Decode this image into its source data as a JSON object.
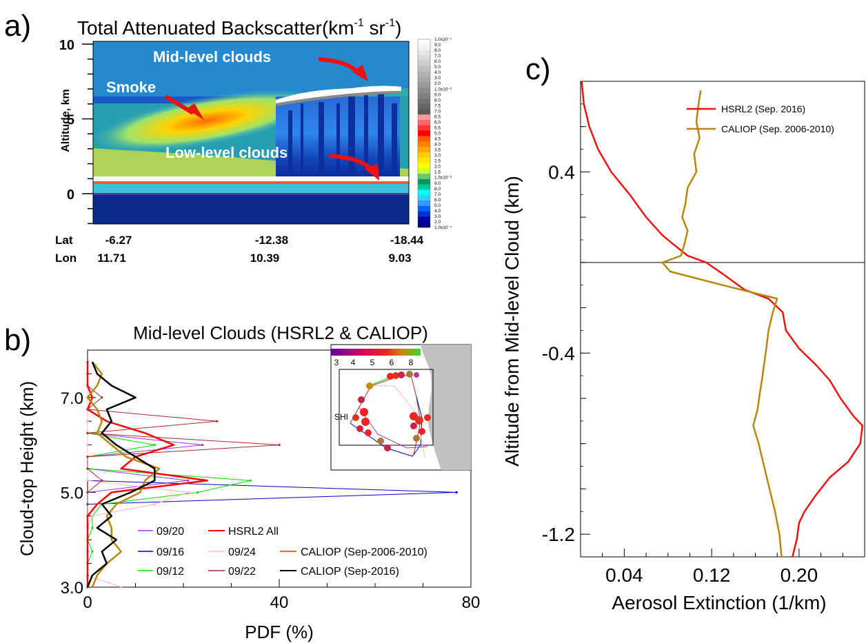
{
  "panel_labels": {
    "a": "a)",
    "b": "b)",
    "c": "c)"
  },
  "panel_a": {
    "title_main": "Total Attenuated Backscatter(km",
    "title_sup1": "-1",
    "title_mid": " sr",
    "title_sup2": "-1",
    "title_end": ")",
    "ylabel": "Altitude, km",
    "yticks": [
      "10",
      "5",
      "0"
    ],
    "row_lat": "Lat",
    "row_lon": "Lon",
    "lat_ticks": [
      "-6.27",
      "-12.38",
      "-18.44"
    ],
    "lon_ticks": [
      "11.71",
      "10.39",
      "9.03"
    ],
    "annotations": {
      "mid": "Mid-level clouds",
      "smoke": "Smoke",
      "low": "Low-level clouds"
    },
    "colorbar_labels": [
      "1.0x10⁻¹",
      "9.0",
      "8.0",
      "7.0",
      "6.0",
      "5.0",
      "4.0",
      "3.0",
      "2.0",
      "1.0x10⁻²",
      "9.0",
      "8.0",
      "7.5",
      "7.0",
      "6.5",
      "6.0",
      "5.5",
      "5.0",
      "4.5",
      "4.0",
      "3.5",
      "3.0",
      "2.5",
      "2.0",
      "1.5",
      "1.0x10⁻³",
      "9.0",
      "8.0",
      "7.0",
      "6.0",
      "5.0",
      "4.0",
      "3.0",
      "2.0",
      "1.0x10⁻⁴"
    ],
    "colorbar_colors": [
      "#ffffff",
      "#f2f2f2",
      "#e6e6e6",
      "#d9d9d9",
      "#cccccc",
      "#bfbfbf",
      "#b3b3b3",
      "#a6a6a6",
      "#999999",
      "#8c8c8c",
      "#808080",
      "#737373",
      "#666666",
      "#595959",
      "#ff9999",
      "#ff6666",
      "#ff3333",
      "#ff0000",
      "#ff5a00",
      "#ff8000",
      "#ffa500",
      "#ffcc00",
      "#ffe600",
      "#ffff00",
      "#ccff33",
      "#66cc66",
      "#009966",
      "#00cc99",
      "#00ffff",
      "#33ccff",
      "#3399ff",
      "#0066ff",
      "#0033cc",
      "#0000aa",
      "#000080"
    ]
  },
  "chart_data": [
    {
      "type": "line",
      "panel": "b",
      "title": "Mid-level Clouds (HSRL2 & CALIOP)",
      "xlabel": "PDF (%)",
      "ylabel": "Cloud-top Height (km)",
      "xlim": [
        0,
        80
      ],
      "ylim": [
        3.0,
        8.0
      ],
      "xticks": [
        "0",
        "40",
        "80"
      ],
      "yticks": [
        "3.0",
        "5.0",
        "7.0"
      ],
      "series": [
        {
          "name": "09/20",
          "color": "#9933ee",
          "width": 1,
          "points": [
            [
              0,
              3.0
            ],
            [
              0,
              3.25
            ],
            [
              0,
              3.5
            ],
            [
              0,
              3.75
            ],
            [
              0,
              4.0
            ],
            [
              0,
              4.25
            ],
            [
              0,
              4.5
            ],
            [
              0,
              4.75
            ],
            [
              0,
              5.0
            ],
            [
              21,
              5.25
            ],
            [
              0,
              5.5
            ],
            [
              0,
              5.75
            ],
            [
              24,
              6.0
            ],
            [
              0,
              6.25
            ],
            [
              0,
              6.5
            ],
            [
              0,
              6.75
            ],
            [
              0,
              7.0
            ],
            [
              0,
              7.25
            ],
            [
              0,
              7.5
            ],
            [
              0,
              7.75
            ]
          ]
        },
        {
          "name": "09/16",
          "color": "#0000cc",
          "width": 1,
          "points": [
            [
              0,
              3.0
            ],
            [
              0,
              3.25
            ],
            [
              0,
              3.5
            ],
            [
              0,
              3.75
            ],
            [
              0,
              4.0
            ],
            [
              0,
              4.25
            ],
            [
              0,
              4.5
            ],
            [
              0,
              4.75
            ],
            [
              77,
              5.0
            ],
            [
              0,
              5.25
            ],
            [
              0,
              5.5
            ],
            [
              0,
              5.75
            ],
            [
              0,
              6.0
            ],
            [
              0,
              6.25
            ],
            [
              0,
              6.5
            ],
            [
              0,
              6.75
            ],
            [
              0,
              7.0
            ],
            [
              0,
              7.25
            ],
            [
              0,
              7.5
            ],
            [
              0,
              7.75
            ]
          ]
        },
        {
          "name": "09/12",
          "color": "#00dd00",
          "width": 1,
          "points": [
            [
              0,
              3.0
            ],
            [
              0,
              3.25
            ],
            [
              0,
              3.5
            ],
            [
              1,
              3.75
            ],
            [
              0,
              4.0
            ],
            [
              1,
              4.25
            ],
            [
              1,
              4.5
            ],
            [
              3,
              4.75
            ],
            [
              23,
              5.0
            ],
            [
              34,
              5.25
            ],
            [
              0,
              5.5
            ],
            [
              0,
              5.75
            ],
            [
              14,
              6.0
            ],
            [
              0,
              6.25
            ],
            [
              0,
              6.5
            ],
            [
              0,
              6.75
            ],
            [
              0,
              7.0
            ],
            [
              0,
              7.25
            ],
            [
              0,
              7.5
            ],
            [
              0,
              7.75
            ]
          ]
        },
        {
          "name": "09/24",
          "color": "#ffb6c1",
          "width": 1,
          "points": [
            [
              7,
              3.0
            ],
            [
              0,
              3.25
            ],
            [
              0,
              3.5
            ],
            [
              0,
              3.75
            ],
            [
              0,
              4.0
            ],
            [
              0,
              4.25
            ],
            [
              1,
              4.5
            ],
            [
              14,
              4.75
            ],
            [
              21,
              5.0
            ],
            [
              0,
              5.25
            ],
            [
              0,
              5.5
            ],
            [
              0,
              5.75
            ],
            [
              0,
              6.0
            ],
            [
              0,
              6.25
            ],
            [
              0,
              6.5
            ],
            [
              0,
              6.75
            ],
            [
              0,
              7.0
            ],
            [
              0,
              7.25
            ],
            [
              0,
              7.5
            ],
            [
              0,
              7.75
            ]
          ]
        },
        {
          "name": "09/22",
          "color": "#a52a2a",
          "width": 1,
          "points": [
            [
              0,
              3.0
            ],
            [
              0,
              3.25
            ],
            [
              0,
              3.5
            ],
            [
              0,
              3.75
            ],
            [
              0,
              4.0
            ],
            [
              0,
              4.25
            ],
            [
              0,
              4.5
            ],
            [
              0,
              4.75
            ],
            [
              0,
              5.0
            ],
            [
              3,
              5.25
            ],
            [
              0,
              5.5
            ],
            [
              0,
              5.75
            ],
            [
              40,
              6.0
            ],
            [
              0,
              6.25
            ],
            [
              27,
              6.5
            ],
            [
              0,
              6.75
            ],
            [
              3,
              7.0
            ],
            [
              0,
              7.25
            ],
            [
              0,
              7.5
            ],
            [
              0,
              7.75
            ]
          ]
        },
        {
          "name": "HSRL2 All",
          "color": "#ff0000",
          "width": 2.5,
          "points": [
            [
              0,
              3.0
            ],
            [
              0,
              3.25
            ],
            [
              0,
              3.5
            ],
            [
              0,
              3.75
            ],
            [
              0,
              4.0
            ],
            [
              0,
              4.25
            ],
            [
              0,
              4.5
            ],
            [
              2,
              4.75
            ],
            [
              5,
              5.0
            ],
            [
              25,
              5.25
            ],
            [
              7,
              5.5
            ],
            [
              10,
              5.75
            ],
            [
              18,
              6.0
            ],
            [
              12,
              6.25
            ],
            [
              4,
              6.5
            ],
            [
              0,
              6.75
            ],
            [
              1,
              7.0
            ],
            [
              0,
              7.25
            ],
            [
              0,
              7.5
            ],
            [
              0,
              7.75
            ]
          ]
        },
        {
          "name": "CALIOP (Sep-2006-2010)",
          "color": "#b8860b",
          "width": 2.5,
          "points": [
            [
              1,
              3.0
            ],
            [
              2,
              3.25
            ],
            [
              4,
              3.5
            ],
            [
              7,
              3.75
            ],
            [
              5,
              4.0
            ],
            [
              5,
              4.25
            ],
            [
              4,
              4.5
            ],
            [
              6,
              4.75
            ],
            [
              11,
              5.0
            ],
            [
              12,
              5.25
            ],
            [
              15,
              5.5
            ],
            [
              8,
              5.75
            ],
            [
              5,
              6.0
            ],
            [
              2,
              6.25
            ],
            [
              3,
              6.5
            ],
            [
              2,
              6.75
            ],
            [
              0,
              7.0
            ],
            [
              2,
              7.25
            ],
            [
              3,
              7.5
            ],
            [
              1,
              7.75
            ]
          ]
        },
        {
          "name": "CALIOP (Sep-2016)",
          "color": "#000000",
          "width": 2.5,
          "points": [
            [
              0,
              3.0
            ],
            [
              1,
              3.25
            ],
            [
              4,
              3.5
            ],
            [
              3,
              3.75
            ],
            [
              6,
              4.0
            ],
            [
              2,
              4.25
            ],
            [
              5,
              4.5
            ],
            [
              3,
              4.75
            ],
            [
              9,
              5.0
            ],
            [
              14,
              5.25
            ],
            [
              14,
              5.5
            ],
            [
              10,
              5.75
            ],
            [
              6,
              6.0
            ],
            [
              3,
              6.25
            ],
            [
              5,
              6.5
            ],
            [
              4,
              6.75
            ],
            [
              10,
              7.0
            ],
            [
              5,
              7.25
            ],
            [
              2,
              7.5
            ],
            [
              1,
              7.75
            ]
          ]
        }
      ],
      "inset": {
        "colorbar_ticks": [
          "3",
          "4",
          "5",
          "6",
          "8"
        ],
        "site_label": "SHI"
      }
    },
    {
      "type": "line",
      "panel": "c",
      "title": "",
      "xlabel": "Aerosol Extinction (1/km)",
      "ylabel": "Altitude from Mid-level Cloud (km)",
      "xlim": [
        0,
        0.26
      ],
      "ylim": [
        -1.3,
        0.8
      ],
      "xticks": [
        "0.04",
        "0.12",
        "0.20"
      ],
      "yticks": [
        "0.4",
        "-0.4",
        "-1.2"
      ],
      "reference_line_y": 0,
      "series": [
        {
          "name": "HSRL2 (Sep. 2016)",
          "color": "#ee1111",
          "points": [
            [
              0.001,
              0.8
            ],
            [
              0.003,
              0.7
            ],
            [
              0.008,
              0.6
            ],
            [
              0.016,
              0.5
            ],
            [
              0.028,
              0.4
            ],
            [
              0.045,
              0.3
            ],
            [
              0.06,
              0.2
            ],
            [
              0.075,
              0.12
            ],
            [
              0.085,
              0.08
            ],
            [
              0.098,
              0.03
            ],
            [
              0.115,
              0.0
            ],
            [
              0.13,
              -0.05
            ],
            [
              0.15,
              -0.12
            ],
            [
              0.172,
              -0.16
            ],
            [
              0.185,
              -0.22
            ],
            [
              0.188,
              -0.3
            ],
            [
              0.2,
              -0.38
            ],
            [
              0.215,
              -0.45
            ],
            [
              0.228,
              -0.52
            ],
            [
              0.238,
              -0.6
            ],
            [
              0.25,
              -0.68
            ],
            [
              0.258,
              -0.72
            ],
            [
              0.256,
              -0.8
            ],
            [
              0.245,
              -0.88
            ],
            [
              0.228,
              -0.95
            ],
            [
              0.215,
              -1.03
            ],
            [
              0.205,
              -1.1
            ],
            [
              0.2,
              -1.15
            ],
            [
              0.198,
              -1.22
            ],
            [
              0.194,
              -1.3
            ]
          ]
        },
        {
          "name": "CALIOP (Sep. 2006-2010)",
          "color": "#b8860b",
          "points": [
            [
              0.11,
              0.76
            ],
            [
              0.108,
              0.7
            ],
            [
              0.106,
              0.62
            ],
            [
              0.109,
              0.55
            ],
            [
              0.104,
              0.48
            ],
            [
              0.106,
              0.4
            ],
            [
              0.098,
              0.33
            ],
            [
              0.096,
              0.26
            ],
            [
              0.093,
              0.2
            ],
            [
              0.098,
              0.14
            ],
            [
              0.095,
              0.08
            ],
            [
              0.092,
              0.03
            ],
            [
              0.075,
              0.0
            ],
            [
              0.082,
              -0.04
            ],
            [
              0.13,
              -0.1
            ],
            [
              0.18,
              -0.16
            ],
            [
              0.176,
              -0.22
            ],
            [
              0.172,
              -0.3
            ],
            [
              0.17,
              -0.38
            ],
            [
              0.168,
              -0.45
            ],
            [
              0.166,
              -0.52
            ],
            [
              0.164,
              -0.58
            ],
            [
              0.162,
              -0.65
            ],
            [
              0.158,
              -0.72
            ],
            [
              0.163,
              -0.8
            ],
            [
              0.168,
              -0.9
            ],
            [
              0.173,
              -1.0
            ],
            [
              0.178,
              -1.1
            ],
            [
              0.182,
              -1.2
            ],
            [
              0.184,
              -1.3
            ]
          ]
        }
      ]
    }
  ]
}
